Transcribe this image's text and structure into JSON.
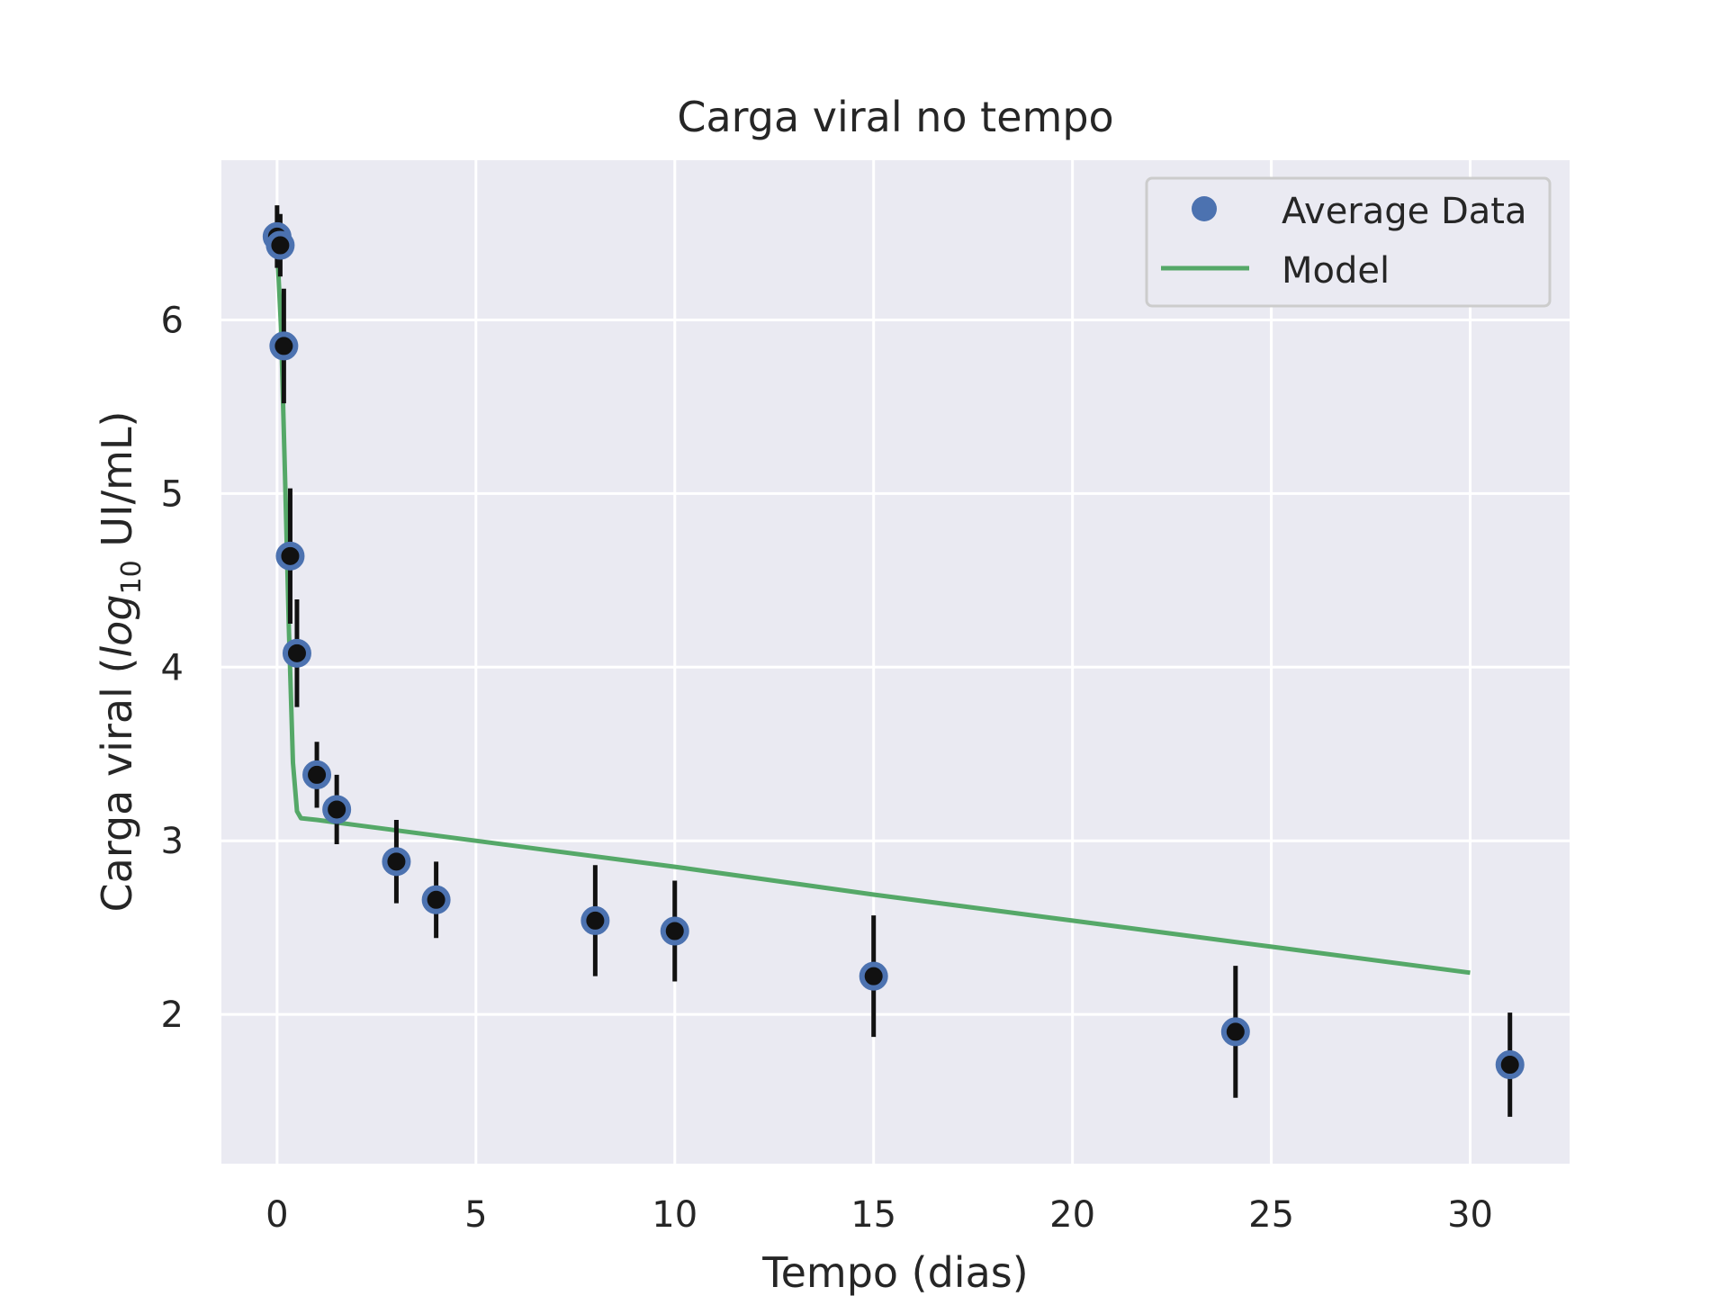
{
  "chart_data": {
    "type": "scatter",
    "title": "Carga viral no tempo",
    "xlabel": "Tempo (dias)",
    "ylabel": {
      "prefix": "Carga viral (",
      "log": "log",
      "log_subscript": "10",
      "suffix": " UI/mL)"
    },
    "xlim": [
      -1.4,
      32.5
    ],
    "ylim": [
      1.14,
      6.92
    ],
    "xticks": [
      0,
      5,
      10,
      15,
      20,
      25,
      30
    ],
    "yticks": [
      2,
      3,
      4,
      5,
      6
    ],
    "grid": true,
    "legend_position": "top-right",
    "series": [
      {
        "name": "Average Data",
        "kind": "points-with-errorbars",
        "x": [
          0.0,
          0.08,
          0.17,
          0.33,
          0.5,
          1.0,
          1.5,
          3.0,
          4.0,
          8.0,
          10.0,
          15.0,
          24.1,
          31.0
        ],
        "y": [
          6.48,
          6.43,
          5.85,
          4.64,
          4.08,
          3.38,
          3.18,
          2.88,
          2.66,
          2.54,
          2.48,
          2.22,
          1.9,
          1.71
        ],
        "yerr": [
          0.18,
          0.18,
          0.33,
          0.39,
          0.31,
          0.19,
          0.2,
          0.24,
          0.22,
          0.32,
          0.29,
          0.35,
          0.38,
          0.3
        ]
      },
      {
        "name": "Model",
        "kind": "line",
        "x": [
          0.0,
          0.1,
          0.2,
          0.3,
          0.4,
          0.5,
          0.6,
          1.0,
          2.0,
          5.0,
          10.0,
          15.0,
          20.0,
          25.0,
          30.0
        ],
        "y": [
          6.42,
          5.95,
          5.1,
          4.2,
          3.45,
          3.17,
          3.13,
          3.12,
          3.09,
          3.0,
          2.85,
          2.69,
          2.54,
          2.39,
          2.24
        ]
      }
    ]
  },
  "colors": {
    "plot_background": "#EAEAF2",
    "grid": "#FFFFFF",
    "marker_edge": "#4C72B0",
    "marker_center": "#111111",
    "errorbar": "#111111",
    "model_line": "#55A868",
    "text": "#262626"
  }
}
